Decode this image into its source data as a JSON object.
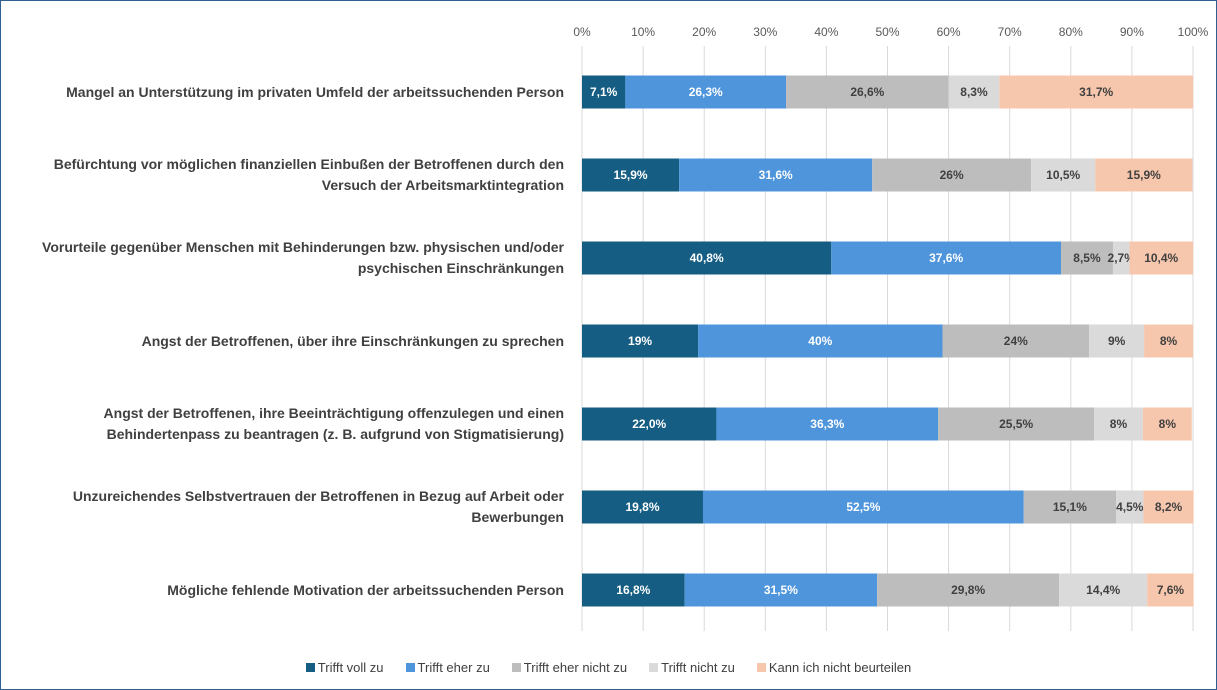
{
  "chart_data": {
    "type": "stacked-bar-horizontal",
    "categories": [
      "Mangel an Unterstützung im privaten Umfeld der arbeitssuchenden Person",
      "Befürchtung vor möglichen finanziellen Einbußen der Betroffenen durch den Versuch der Arbeitsmarktintegration",
      "Vorurteile gegenüber Menschen mit Behinderungen bzw. physischen und/oder psychischen Einschränkungen",
      "Angst der Betroffenen, über ihre Einschränkungen zu sprechen",
      "Angst der Betroffenen, ihre Beeinträchtigung offenzulegen und einen Behindertenpass zu beantragen (z. B. aufgrund von Stigmatisierung)",
      "Unzureichendes Selbstvertrauen der Betroffenen in Bezug auf Arbeit oder Bewerbungen",
      "Mögliche fehlende Motivation der arbeitssuchenden Person"
    ],
    "series": [
      {
        "name": "Trifft voll zu",
        "color": "#155d82",
        "values": [
          7.1,
          15.9,
          40.8,
          19,
          22.0,
          19.8,
          16.8
        ],
        "value_labels": [
          "7,1%",
          "15,9%",
          "40,8%",
          "19%",
          "22,0%",
          "19,8%",
          "16,8%"
        ]
      },
      {
        "name": "Trifft eher zu",
        "color": "#4f95dc",
        "values": [
          26.3,
          31.6,
          37.6,
          40,
          36.3,
          52.5,
          31.5
        ],
        "value_labels": [
          "26,3%",
          "31,6%",
          "37,6%",
          "40%",
          "36,3%",
          "52,5%",
          "31,5%"
        ]
      },
      {
        "name": "Trifft eher nicht zu",
        "color": "#bdbdbd",
        "values": [
          26.6,
          26,
          8.5,
          24,
          25.5,
          15.1,
          29.8
        ],
        "value_labels": [
          "26,6%",
          "26%",
          "8,5%",
          "24%",
          "25,5%",
          "15,1%",
          "29,8%"
        ]
      },
      {
        "name": "Trifft nicht zu",
        "color": "#dadada",
        "values": [
          8.3,
          10.5,
          2.7,
          9,
          8,
          4.5,
          14.4
        ],
        "value_labels": [
          "8,3%",
          "10,5%",
          "2,7%",
          "9%",
          "8%",
          "4,5%",
          "14,4%"
        ]
      },
      {
        "name": "Kann ich nicht beurteilen",
        "color": "#f7c7ad",
        "values": [
          31.7,
          15.9,
          10.4,
          8,
          8,
          8.2,
          7.6
        ],
        "value_labels": [
          "31,7%",
          "15,9%",
          "10,4%",
          "8%",
          "8%",
          "8,2%",
          "7,6%"
        ]
      }
    ],
    "xlim": [
      0,
      100
    ],
    "xticks": [
      {
        "value": 0,
        "label": "0%"
      },
      {
        "value": 10,
        "label": "10%"
      },
      {
        "value": 20,
        "label": "20%"
      },
      {
        "value": 30,
        "label": "30%"
      },
      {
        "value": 40,
        "label": "40%"
      },
      {
        "value": 50,
        "label": "50%"
      },
      {
        "value": 60,
        "label": "60%"
      },
      {
        "value": 70,
        "label": "70%"
      },
      {
        "value": 80,
        "label": "80%"
      },
      {
        "value": 90,
        "label": "90%"
      },
      {
        "value": 100,
        "label": "100%"
      }
    ],
    "grid": true,
    "legend": "bottom"
  }
}
